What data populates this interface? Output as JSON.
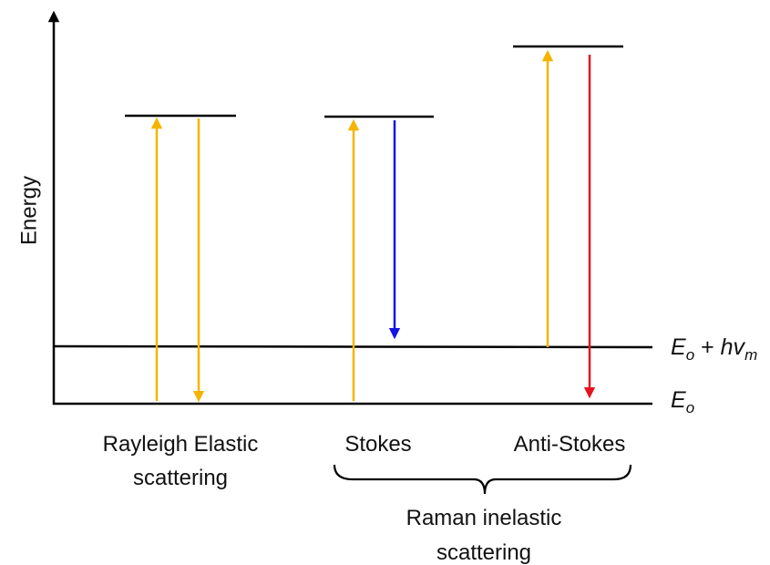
{
  "diagram": {
    "y_axis_label": "Energy",
    "levels": {
      "excited_label_main": "E",
      "excited_label_sub": "o",
      "excited_label_plus": " + ",
      "excited_label_h": "hv",
      "excited_label_h_sub": "m",
      "ground_label_main": "E",
      "ground_label_sub": "o"
    },
    "processes": {
      "rayleigh_line1": "Rayleigh Elastic",
      "rayleigh_line2": "scattering",
      "stokes": "Stokes",
      "anti_stokes": "Anti-Stokes",
      "raman_line1": "Raman inelastic",
      "raman_line2": "scattering"
    },
    "colors": {
      "incident": "#f5b400",
      "stokes_emission": "#1414e6",
      "anti_stokes_emission": "#e8121c",
      "lines": "#000000"
    }
  }
}
